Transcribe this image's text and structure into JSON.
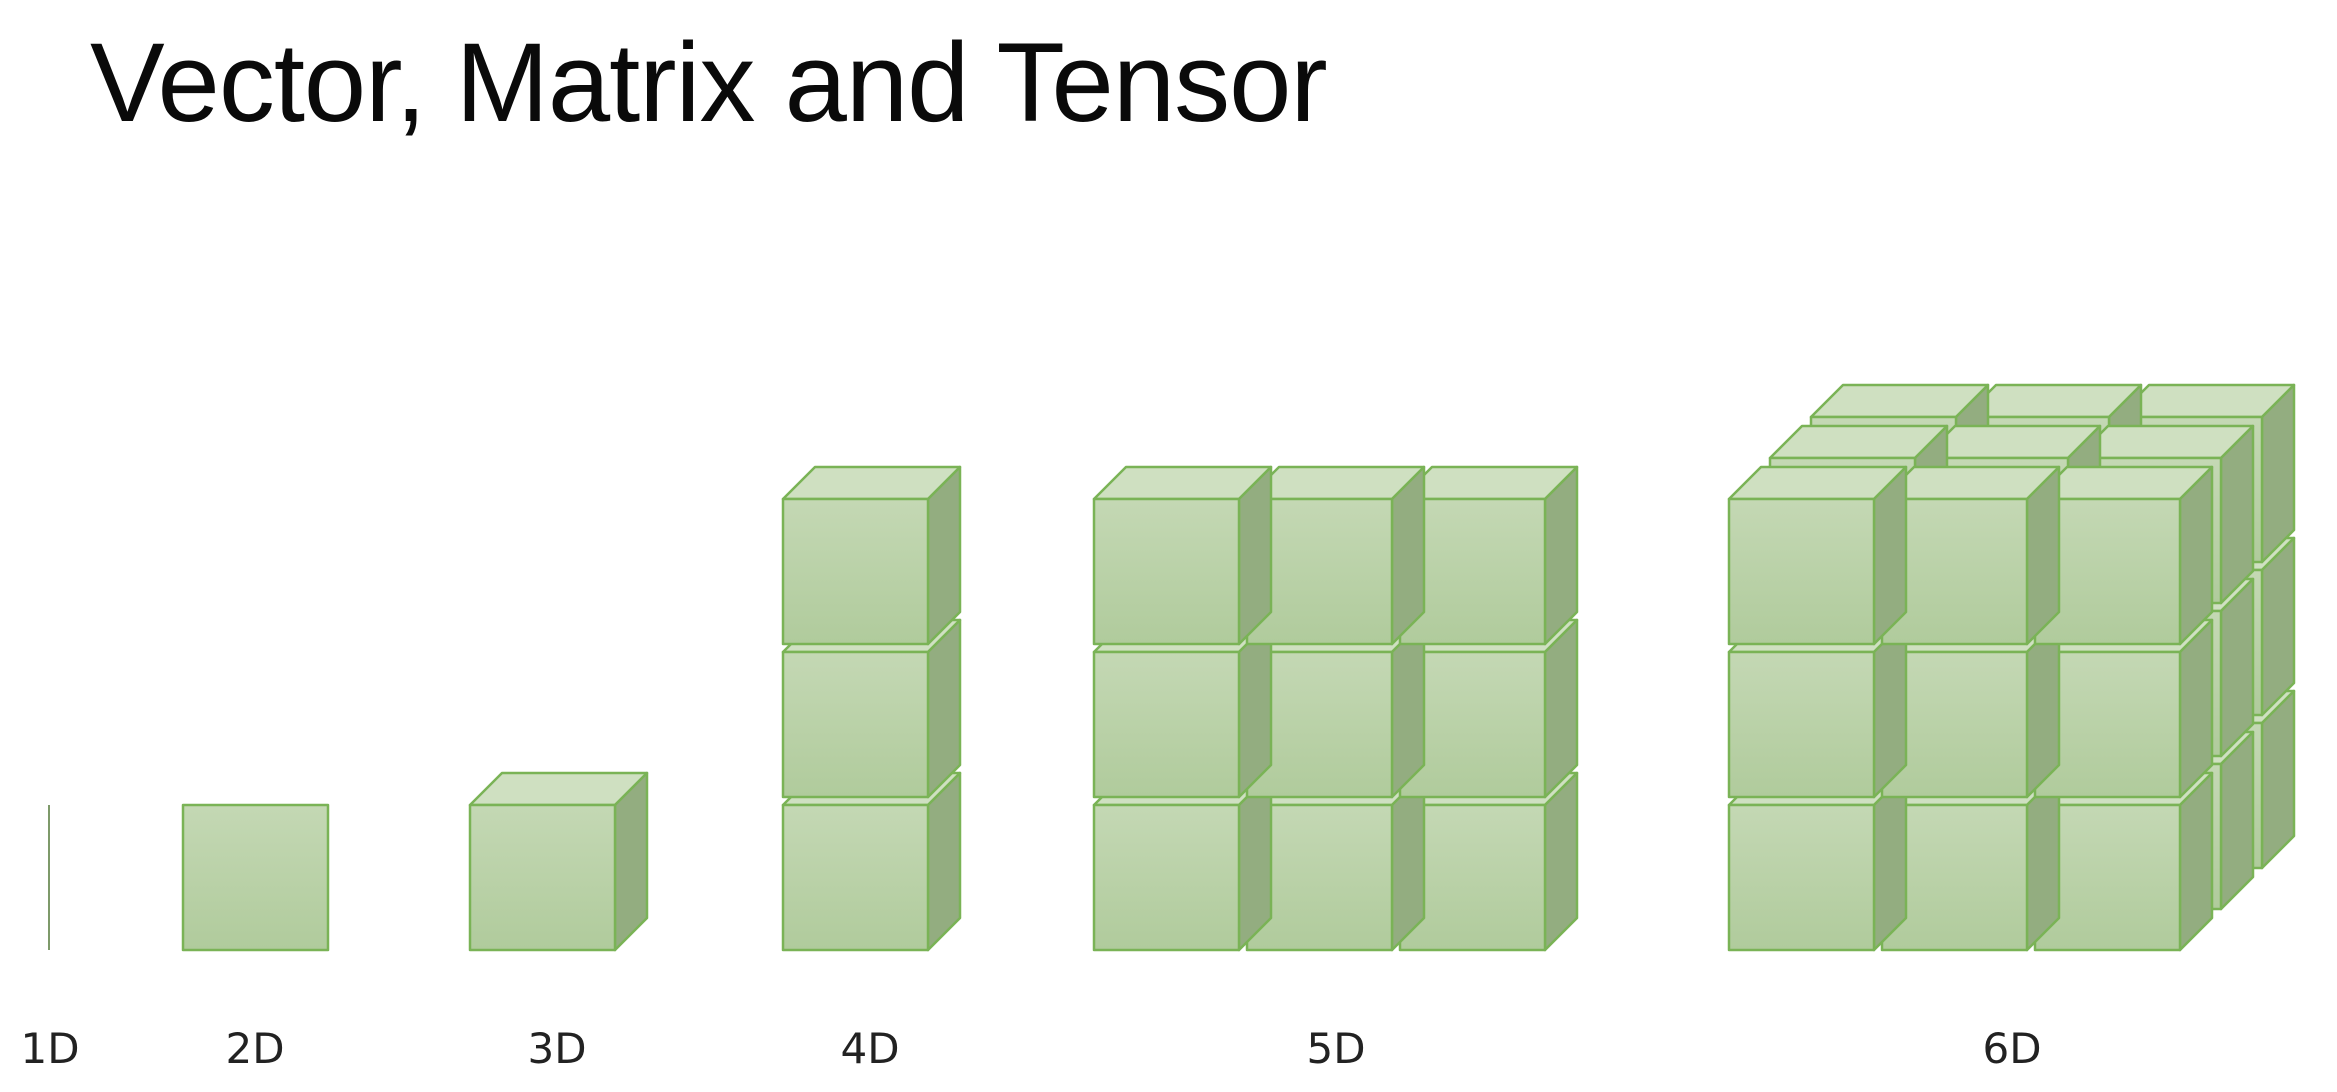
{
  "title": "Vector, Matrix and Tensor",
  "colors": {
    "front_top": "#c4d8b4",
    "front_bottom": "#b0cb9c",
    "top": "#cfe0c1",
    "side": "#93ad80",
    "edge": "#7ab356",
    "line": "#7e9a6a",
    "label": "#222222"
  },
  "icons": [
    "vector-line-icon",
    "cube-icon"
  ],
  "groups": [
    {
      "label": "1D",
      "kind": "line"
    },
    {
      "label": "2D",
      "kind": "square"
    },
    {
      "label": "3D",
      "kind": "cubes",
      "cols": 1,
      "rows": 1,
      "layers": 1
    },
    {
      "label": "4D",
      "kind": "cubes",
      "cols": 1,
      "rows": 3,
      "layers": 1
    },
    {
      "label": "5D",
      "kind": "cubes",
      "cols": 3,
      "rows": 3,
      "layers": 1
    },
    {
      "label": "6D",
      "kind": "cubes",
      "cols": 3,
      "rows": 3,
      "layers": 3
    }
  ]
}
